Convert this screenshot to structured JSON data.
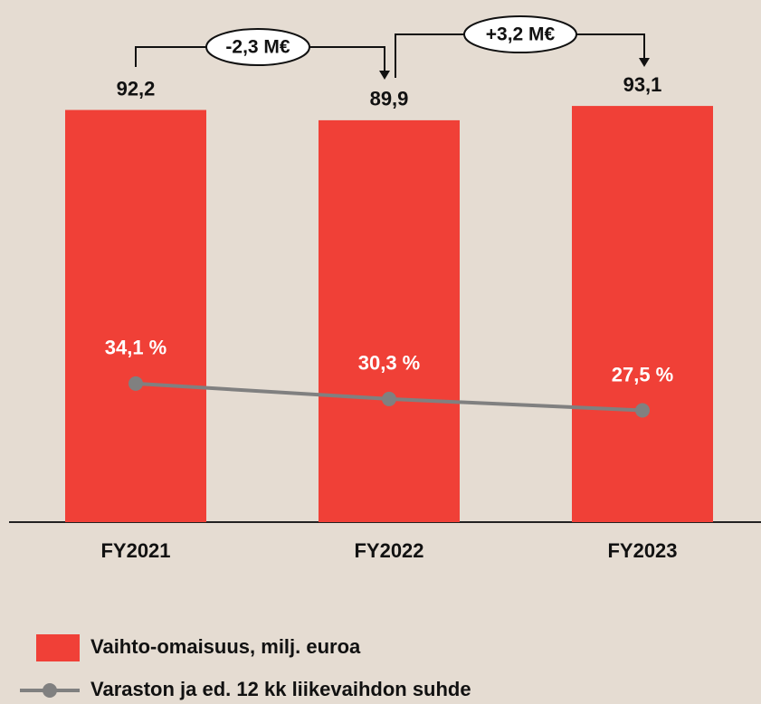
{
  "chart_data": {
    "type": "bar",
    "categories": [
      "FY2021",
      "FY2022",
      "FY2023"
    ],
    "series": [
      {
        "name": "Vaihto-omaisuus, milj. euroa",
        "type": "bar",
        "color": "#f04037",
        "values": [
          92.2,
          89.9,
          93.1
        ],
        "value_labels": [
          "92,2",
          "89,9",
          "93,1"
        ]
      },
      {
        "name": "Varaston ja ed. 12 kk liikevaihdon suhde",
        "type": "line",
        "axis": "y2",
        "color": "#808080",
        "values": [
          34.1,
          30.3,
          27.5
        ],
        "value_labels": [
          "34,1 %",
          "30,3 %",
          "27,5 %"
        ]
      }
    ],
    "ylim": [
      0,
      100
    ],
    "y2lim": [
      0,
      110
    ],
    "annotations": [
      "-2,3 M€",
      "+3,2 M€"
    ],
    "background": "#e5dcd2"
  }
}
